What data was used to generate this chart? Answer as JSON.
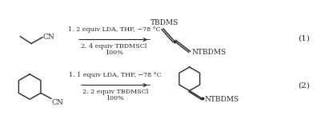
{
  "background": "#ffffff",
  "line_color": "#2a2a2a",
  "text_color": "#2a2a2a",
  "reaction1": {
    "reagent_line1": "1. 2 equiv LDA, THF, −78 °C",
    "reagent_line2": "2. 4 equiv TBDMSCl",
    "reagent_line3": "100%",
    "label": "(1)"
  },
  "reaction2": {
    "reagent_line1": "1. 1 equiv LDA, THF, −78 °C",
    "reagent_line2": "2. 2 equiv TBDMSCl",
    "reagent_line3": "100%",
    "label": "(2)"
  },
  "font_size_reagent": 5.8,
  "font_size_label": 7.5,
  "font_size_struct": 6.5,
  "font_size_group": 6.5
}
